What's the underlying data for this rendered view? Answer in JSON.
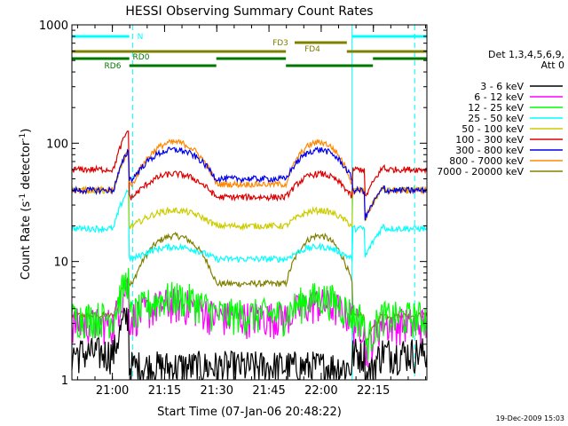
{
  "chart_data": {
    "type": "line",
    "title": "HESSI Observing Summary Count Rates",
    "xlabel": "Start Time (07-Jan-06 20:48:22)",
    "ylabel_main": "Count Rate (s",
    "ylabel_sup1": "-1",
    "ylabel_mid": " detector",
    "ylabel_sup2": "-1",
    "ylabel_end": ")",
    "yscale": "log",
    "ylim": [
      1,
      1000
    ],
    "x_axis_start": "20:48:22",
    "xlim_minutes": [
      0,
      102
    ],
    "x_ticks": [
      {
        "label": "21:00",
        "t": 11.63
      },
      {
        "label": "21:15",
        "t": 26.63
      },
      {
        "label": "21:30",
        "t": 41.63
      },
      {
        "label": "21:45",
        "t": 56.63
      },
      {
        "label": "22:00",
        "t": 71.63
      },
      {
        "label": "22:15",
        "t": 86.63
      }
    ],
    "y_ticks": [
      {
        "label": "1",
        "v": 1
      },
      {
        "label": "10",
        "v": 10
      },
      {
        "label": "100",
        "v": 100
      },
      {
        "label": "1000",
        "v": 1000
      }
    ],
    "timestamp": "19-Dec-2009 15:03",
    "legend": {
      "header1": "Det 1,3,4,5,6,9,",
      "header2": "Att 0",
      "placement": "right"
    },
    "series": [
      {
        "name": "3 - 6 keV",
        "color": "#000000"
      },
      {
        "name": "6 - 12 keV",
        "color": "#ff00ff"
      },
      {
        "name": "12 - 25 keV",
        "color": "#00ff00"
      },
      {
        "name": "25 - 50 keV",
        "color": "#00ffff"
      },
      {
        "name": "50 - 100 keV",
        "color": "#cccc00"
      },
      {
        "name": "100 - 300 keV",
        "color": "#dd0000"
      },
      {
        "name": "300 - 800 keV",
        "color": "#0000ee"
      },
      {
        "name": "800 - 7000 keV",
        "color": "#ff8800"
      },
      {
        "name": "7000 - 20000 keV",
        "color": "#808000"
      }
    ],
    "flags": [
      {
        "name": "N",
        "color": "#00ffff",
        "segments": [
          [
            0,
            16.5
          ],
          [
            80.5,
            102
          ]
        ]
      },
      {
        "name": "FD3",
        "color": "#808000",
        "segments": [
          [
            64,
            79
          ]
        ]
      },
      {
        "name": "FD4",
        "color": "#808000",
        "segments": [
          [
            0,
            61.5
          ],
          [
            79,
            102
          ]
        ]
      },
      {
        "name": "RD0",
        "color": "#007700",
        "segments": [
          [
            0,
            16.5
          ],
          [
            41.5,
            61.5
          ],
          [
            86.5,
            102
          ]
        ]
      },
      {
        "name": "RD6",
        "color": "#007700",
        "segments": [
          [
            16.5,
            41.5
          ],
          [
            61.5,
            86.5
          ]
        ]
      }
    ],
    "night_boundaries_solid": [
      0,
      80.5
    ],
    "night_boundaries_dashed": [
      17.5,
      98.5
    ]
  }
}
